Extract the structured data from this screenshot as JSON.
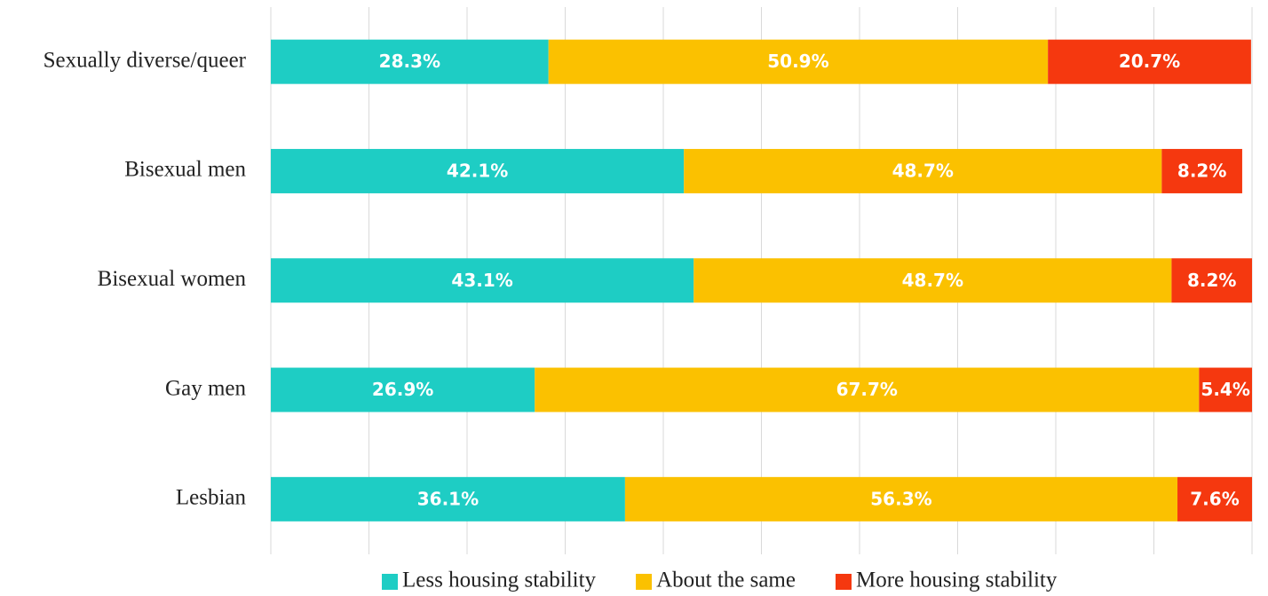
{
  "chart_data": {
    "type": "stacked-bar-horizontal",
    "categories": [
      "Sexually diverse/queer",
      "Bisexual men",
      "Bisexual women",
      "Gay men",
      "Lesbian"
    ],
    "series": [
      {
        "name": "Less housing stability",
        "color": "#1ecdc4",
        "values": [
          28.3,
          42.1,
          43.1,
          26.9,
          36.1
        ],
        "value_labels": [
          "28.3%",
          "42.1%",
          "43.1%",
          "26.9%",
          "36.1%"
        ]
      },
      {
        "name": "About the same",
        "color": "#fbc100",
        "values": [
          50.9,
          48.7,
          48.7,
          67.7,
          56.3
        ],
        "value_labels": [
          "50.9%",
          "48.7%",
          "48.7%",
          "67.7%",
          "56.3%"
        ]
      },
      {
        "name": "More housing stability",
        "color": "#f5380f",
        "values": [
          20.7,
          8.2,
          8.2,
          5.4,
          7.6
        ],
        "value_labels": [
          "20.7%",
          "8.2%",
          "8.2%",
          "5.4%",
          "7.6%"
        ]
      }
    ],
    "xlim": [
      0,
      100
    ],
    "xticks": [
      0,
      10,
      20,
      30,
      40,
      50,
      60,
      70,
      80,
      90,
      100
    ],
    "grid": true,
    "legend": "bottom"
  }
}
